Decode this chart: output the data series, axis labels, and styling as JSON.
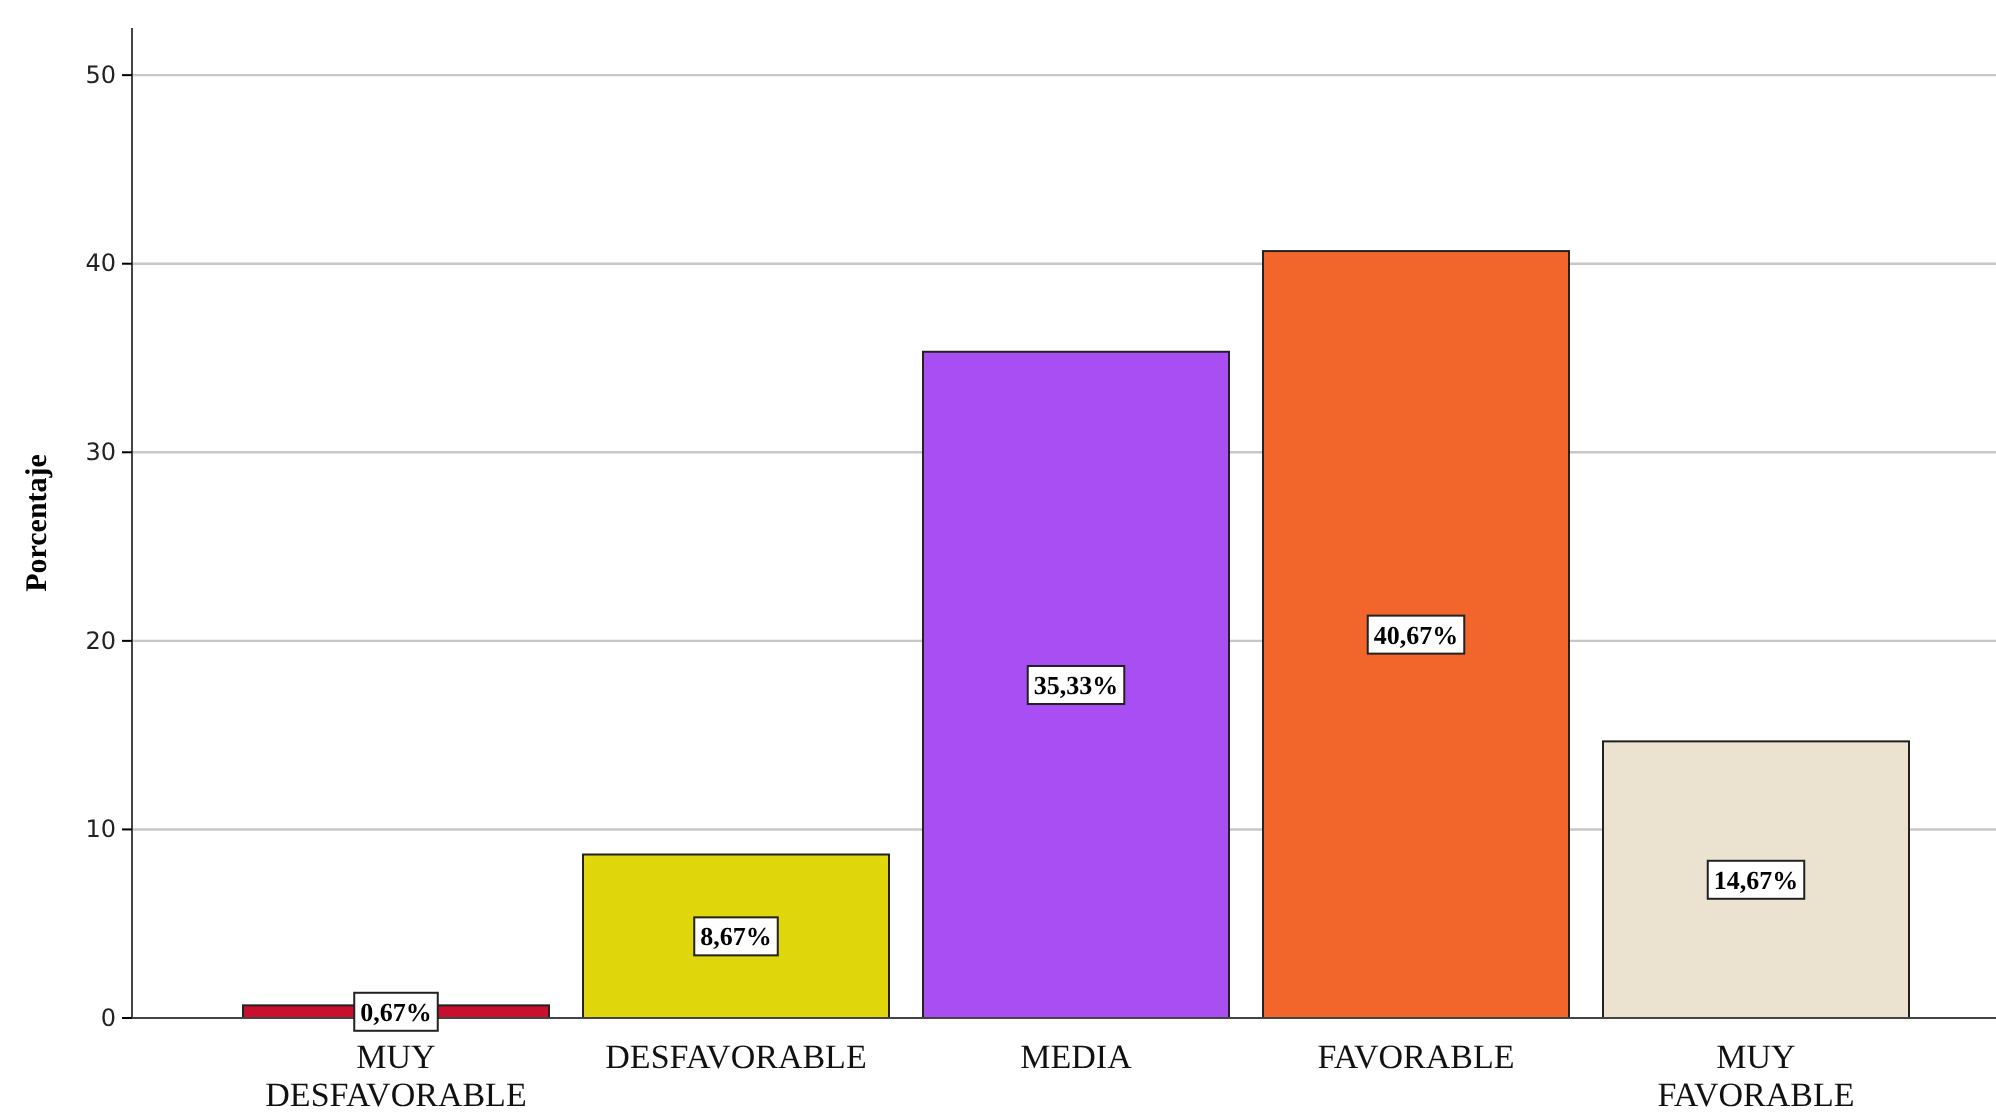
{
  "chart_data": {
    "type": "bar",
    "ylabel": "Porcentaje",
    "categories": [
      "MUY DESFAVORABLE",
      "DESFAVORABLE",
      "MEDIA",
      "FAVORABLE",
      "MUY FAVORABLE"
    ],
    "values": [
      0.67,
      8.67,
      35.33,
      40.67,
      14.67
    ],
    "colors": [
      "#c8102e",
      "#e0d60c",
      "#a94ef2",
      "#f2662c",
      "#ebe3cf"
    ],
    "value_labels": [
      "0,67%",
      "8,67%",
      "35,33%",
      "40,67%",
      "14,67%"
    ],
    "ylim": [
      0,
      52.5
    ],
    "yticks": [
      0,
      10,
      20,
      30,
      40,
      50
    ],
    "grid": "y"
  }
}
